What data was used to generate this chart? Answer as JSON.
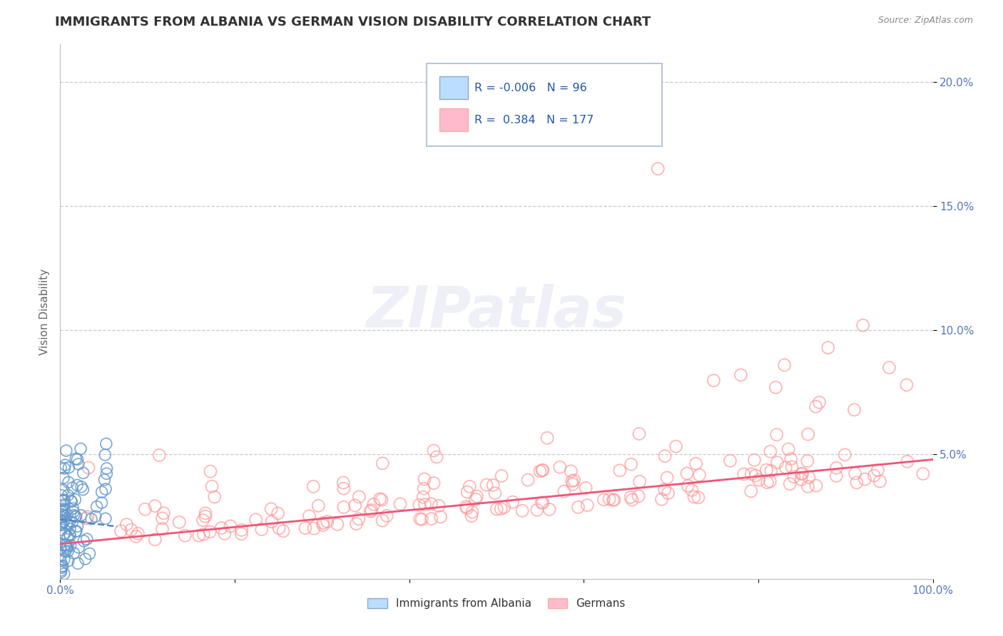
{
  "title": "IMMIGRANTS FROM ALBANIA VS GERMAN VISION DISABILITY CORRELATION CHART",
  "source": "Source: ZipAtlas.com",
  "ylabel": "Vision Disability",
  "watermark": "ZIPatlas",
  "legend_blue_r": "-0.006",
  "legend_blue_n": "96",
  "legend_pink_r": "0.384",
  "legend_pink_n": "177",
  "legend_label1": "Immigrants from Albania",
  "legend_label2": "Germans",
  "xlim": [
    0.0,
    1.0
  ],
  "ylim": [
    0.0,
    0.215
  ],
  "xticks": [
    0.0,
    0.2,
    0.4,
    0.6,
    0.8,
    1.0
  ],
  "xtick_labels": [
    "0.0%",
    "",
    "",
    "",
    "",
    "100.0%"
  ],
  "yticks": [
    0.05,
    0.1,
    0.15,
    0.2
  ],
  "ytick_labels": [
    "5.0%",
    "10.0%",
    "15.0%",
    "20.0%"
  ],
  "blue_color": "#6699CC",
  "pink_color": "#FF9999",
  "trend_blue_color": "#5588BB",
  "trend_pink_color": "#EE5577",
  "background_color": "#FFFFFF",
  "grid_color": "#BBBBCC",
  "title_color": "#333333",
  "axis_tick_color": "#5577BB",
  "seed": 42
}
